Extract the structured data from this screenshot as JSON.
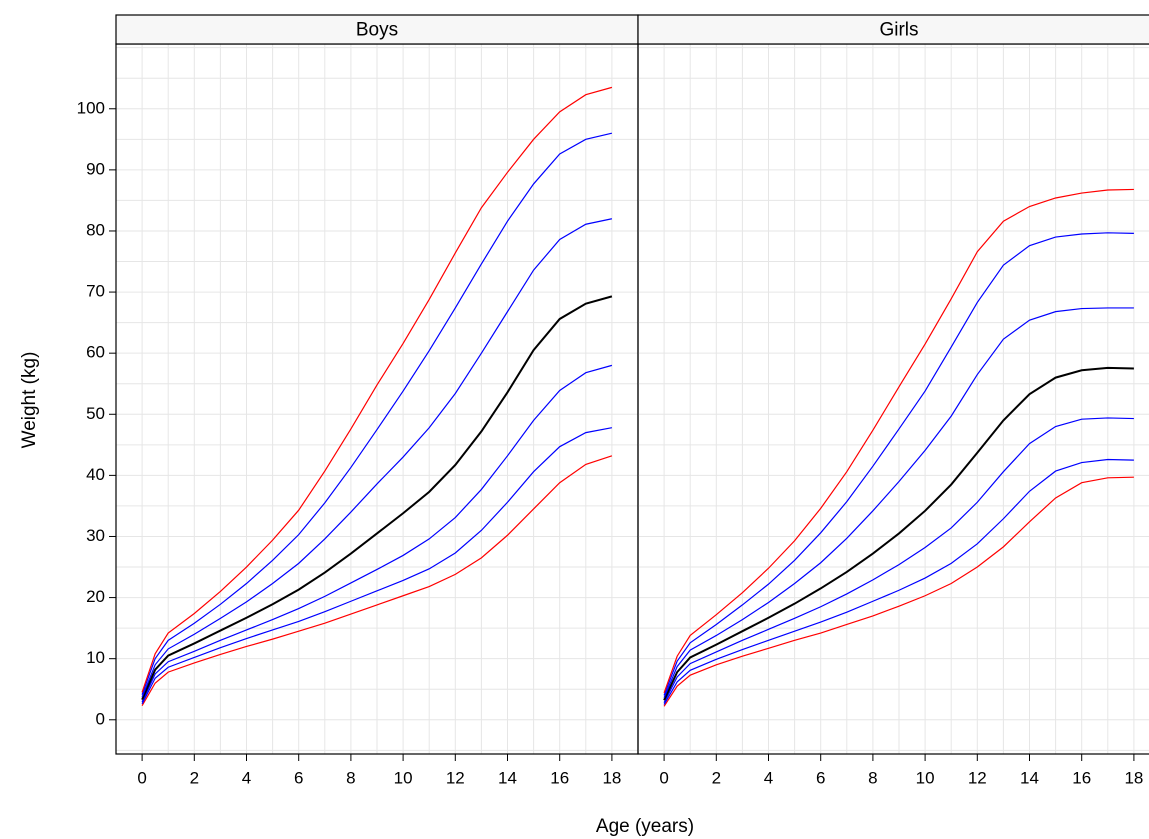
{
  "xlabel": "Age (years)",
  "ylabel": "Weight (kg)",
  "chart_data": [
    {
      "type": "line",
      "title": "Boys",
      "x": [
        0,
        0.5,
        1,
        2,
        3,
        4,
        5,
        6,
        7,
        8,
        9,
        10,
        11,
        12,
        13,
        14,
        15,
        16,
        17,
        18
      ],
      "xlim": [
        -1,
        19
      ],
      "ylim": [
        -5.6,
        110.6
      ],
      "xticks": [
        0,
        2,
        4,
        6,
        8,
        10,
        12,
        14,
        16,
        18
      ],
      "yticks": [
        0,
        10,
        20,
        30,
        40,
        50,
        60,
        70,
        80,
        90,
        100
      ],
      "xgrid": [
        0,
        1,
        2,
        3,
        4,
        5,
        6,
        7,
        8,
        9,
        10,
        11,
        12,
        13,
        14,
        15,
        16,
        17,
        18
      ],
      "ygrid": [
        -5,
        0,
        5,
        10,
        15,
        20,
        25,
        30,
        35,
        40,
        45,
        50,
        55,
        60,
        65,
        70,
        75,
        80,
        85,
        90,
        95,
        100,
        105,
        110
      ],
      "series": [
        {
          "color": "#ff0000",
          "values": [
            2.3,
            6,
            7.8,
            9.3,
            10.7,
            12,
            13.2,
            14.5,
            15.8,
            17.3,
            18.8,
            20.3,
            21.8,
            23.8,
            26.5,
            30.2,
            34.5,
            38.8,
            41.8,
            43.2
          ]
        },
        {
          "color": "#0000ff",
          "values": [
            2.6,
            6.8,
            8.6,
            10.2,
            11.8,
            13.3,
            14.7,
            16.1,
            17.7,
            19.4,
            21.1,
            22.8,
            24.7,
            27.3,
            31,
            35.6,
            40.6,
            44.7,
            47,
            47.8
          ]
        },
        {
          "color": "#0000ff",
          "values": [
            2.9,
            7.5,
            9.5,
            11.2,
            13,
            14.7,
            16.4,
            18.2,
            20.2,
            22.4,
            24.6,
            26.9,
            29.6,
            33.1,
            37.7,
            43.2,
            49,
            53.9,
            56.8,
            58
          ]
        },
        {
          "color": "#000000",
          "values": [
            3.3,
            8.2,
            10.5,
            12.5,
            14.6,
            16.7,
            18.9,
            21.3,
            24.1,
            27.2,
            30.5,
            33.8,
            37.3,
            41.7,
            47.2,
            53.6,
            60.5,
            65.6,
            68.1,
            69.3
          ]
        },
        {
          "color": "#0000ff",
          "values": [
            3.7,
            9,
            11.6,
            14,
            16.6,
            19.3,
            22.3,
            25.6,
            29.6,
            34,
            38.6,
            43,
            47.8,
            53.4,
            60,
            66.8,
            73.6,
            78.6,
            81.1,
            82
          ]
        },
        {
          "color": "#0000ff",
          "values": [
            4.1,
            10,
            13,
            15.8,
            18.9,
            22.3,
            26.1,
            30.3,
            35.5,
            41.3,
            47.5,
            53.8,
            60.4,
            67.4,
            74.6,
            81.6,
            87.7,
            92.6,
            95,
            96
          ]
        },
        {
          "color": "#ff0000",
          "values": [
            4.5,
            10.8,
            14.2,
            17.4,
            21,
            25,
            29.4,
            34.3,
            40.7,
            47.6,
            54.8,
            61.6,
            68.8,
            76.4,
            83.8,
            89.6,
            95,
            99.5,
            102.3,
            103.5
          ]
        }
      ]
    },
    {
      "type": "line",
      "title": "Girls",
      "x": [
        0,
        0.5,
        1,
        2,
        3,
        4,
        5,
        6,
        7,
        8,
        9,
        10,
        11,
        12,
        13,
        14,
        15,
        16,
        17,
        18
      ],
      "xlim": [
        -1,
        19
      ],
      "ylim": [
        -5.6,
        110.6
      ],
      "xticks": [
        0,
        2,
        4,
        6,
        8,
        10,
        12,
        14,
        16,
        18
      ],
      "yticks": [
        0,
        10,
        20,
        30,
        40,
        50,
        60,
        70,
        80,
        90,
        100
      ],
      "xgrid": [
        0,
        1,
        2,
        3,
        4,
        5,
        6,
        7,
        8,
        9,
        10,
        11,
        12,
        13,
        14,
        15,
        16,
        17,
        18
      ],
      "ygrid": [
        -5,
        0,
        5,
        10,
        15,
        20,
        25,
        30,
        35,
        40,
        45,
        50,
        55,
        60,
        65,
        70,
        75,
        80,
        85,
        90,
        95,
        100,
        105,
        110
      ],
      "series": [
        {
          "color": "#ff0000",
          "values": [
            2.2,
            5.5,
            7.3,
            9,
            10.4,
            11.7,
            13,
            14.2,
            15.6,
            17,
            18.6,
            20.3,
            22.3,
            25,
            28.3,
            32.4,
            36.3,
            38.8,
            39.6,
            39.7
          ]
        },
        {
          "color": "#0000ff",
          "values": [
            2.5,
            6.2,
            8.1,
            9.9,
            11.5,
            13,
            14.5,
            16,
            17.6,
            19.4,
            21.2,
            23.2,
            25.6,
            28.8,
            32.9,
            37.4,
            40.7,
            42.1,
            42.6,
            42.5
          ]
        },
        {
          "color": "#0000ff",
          "values": [
            2.8,
            7,
            9.2,
            11.1,
            13,
            14.8,
            16.6,
            18.5,
            20.6,
            22.9,
            25.4,
            28.2,
            31.4,
            35.6,
            40.6,
            45.2,
            48,
            49.2,
            49.4,
            49.3
          ]
        },
        {
          "color": "#000000",
          "values": [
            3.2,
            7.8,
            10.2,
            12.3,
            14.5,
            16.7,
            19,
            21.5,
            24.2,
            27.2,
            30.5,
            34.2,
            38.5,
            43.7,
            49,
            53.3,
            56,
            57.2,
            57.6,
            57.5
          ]
        },
        {
          "color": "#0000ff",
          "values": [
            3.6,
            8.7,
            11.4,
            13.8,
            16.4,
            19.2,
            22.3,
            25.7,
            29.7,
            34.2,
            39,
            44.1,
            49.7,
            56.5,
            62.3,
            65.4,
            66.8,
            67.3,
            67.4,
            67.4
          ]
        },
        {
          "color": "#0000ff",
          "values": [
            4,
            9.6,
            12.6,
            15.6,
            18.8,
            22.2,
            26.1,
            30.6,
            35.7,
            41.5,
            47.6,
            53.8,
            61,
            68.3,
            74.4,
            77.6,
            79,
            79.5,
            79.7,
            79.6
          ]
        },
        {
          "color": "#ff0000",
          "values": [
            4.4,
            10.4,
            13.8,
            17.2,
            20.8,
            24.8,
            29.3,
            34.6,
            40.6,
            47.4,
            54.5,
            61.5,
            68.9,
            76.6,
            81.6,
            84,
            85.4,
            86.2,
            86.7,
            86.8
          ]
        }
      ]
    }
  ]
}
